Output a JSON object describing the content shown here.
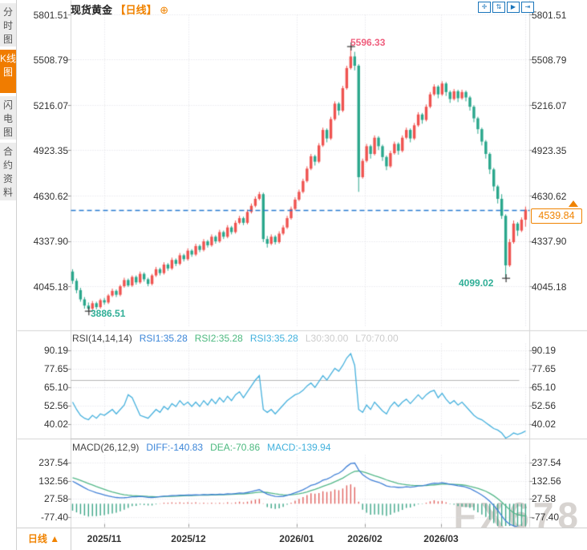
{
  "window": {
    "symbol": "现货黄金",
    "period_tag": "【日线】",
    "settings_glyph": "⊕"
  },
  "toolbar": {
    "icons": [
      {
        "name": "crosshair-icon",
        "glyph": "✛"
      },
      {
        "name": "axis-scale-icon",
        "glyph": "⇅"
      },
      {
        "name": "autoplay-icon",
        "glyph": "▶"
      },
      {
        "name": "go-latest-icon",
        "glyph": "⇥"
      }
    ]
  },
  "sidebar": {
    "items": [
      {
        "label": "分时图",
        "active": false
      },
      {
        "label": "K线图",
        "active": true
      },
      {
        "label": "闪电图",
        "active": false
      },
      {
        "label": "合约资料",
        "active": false
      }
    ]
  },
  "main_chart": {
    "price_axis": [
      "5801.51",
      "5508.79",
      "5216.07",
      "4923.35",
      "4630.62",
      "4337.90",
      "4045.18"
    ],
    "annotation_high": "5596.33",
    "annotation_low": "4099.02",
    "annotation_start_low": "3886.51",
    "current_price": "4539.84"
  },
  "rsi_panel": {
    "header": [
      {
        "text": "RSI(14,14,14)",
        "color": "#444444"
      },
      {
        "text": "RSI1:35.28",
        "color": "#3c86d8"
      },
      {
        "text": "RSI2:35.28",
        "color": "#4cb97f"
      },
      {
        "text": "RSI3:35.28",
        "color": "#41b1dd"
      },
      {
        "text": "L30:30.00",
        "color": "#cccccc"
      },
      {
        "text": "L70:70.00",
        "color": "#cccccc"
      }
    ],
    "axis": [
      "90.19",
      "77.65",
      "65.10",
      "52.56",
      "40.02"
    ]
  },
  "macd_panel": {
    "header": [
      {
        "text": "MACD(26,12,9)",
        "color": "#444444"
      },
      {
        "text": "DIFF:-140.83",
        "color": "#3c86d8"
      },
      {
        "text": "DEA:-70.86",
        "color": "#4cb97f"
      },
      {
        "text": "MACD:-139.94",
        "color": "#41b1dd"
      }
    ],
    "axis": [
      "237.54",
      "132.56",
      "27.58",
      "-77.40"
    ]
  },
  "bottom_bar": {
    "period": "日线",
    "arrow": "▲",
    "x_labels": [
      "2025/11",
      "2025/12",
      "2026/01",
      "2026/02",
      "2026/03"
    ]
  },
  "watermark": "FX678",
  "chart_data": {
    "type": "candlestick+indicators",
    "title": "现货黄金 日线",
    "price_axis_values": [
      5801.51,
      5508.79,
      5216.07,
      4923.35,
      4630.62,
      4337.9,
      4045.18
    ],
    "x_ticks": [
      "2025/11",
      "2025/12",
      "2026/01",
      "2026/02",
      "2026/03"
    ],
    "marked_high": 5596.33,
    "marked_low": 4099.02,
    "left_low": 3886.51,
    "last_price": 4539.84,
    "colors": {
      "up": "#ef5350",
      "down": "#2aa78c",
      "last_price_line": "#2479d0",
      "rsi_line": "#45b0dd",
      "diff_line": "#3f7fd6",
      "dea_line": "#52b788",
      "hist_pos": "#e0615e",
      "hist_neg": "#3aa586",
      "accent": "#f08300"
    },
    "candles": [
      [
        4140,
        4155,
        4060,
        4080
      ],
      [
        4080,
        4095,
        4000,
        4020
      ],
      [
        4020,
        4035,
        3945,
        3960
      ],
      [
        3960,
        3975,
        3900,
        3920
      ],
      [
        3920,
        3940,
        3886.5,
        3900
      ],
      [
        3900,
        3950,
        3890,
        3935
      ],
      [
        3935,
        3945,
        3895,
        3910
      ],
      [
        3910,
        3965,
        3900,
        3955
      ],
      [
        3955,
        3970,
        3925,
        3940
      ],
      [
        3940,
        3995,
        3930,
        3985
      ],
      [
        3985,
        4030,
        3975,
        4015
      ],
      [
        4015,
        4025,
        3975,
        3990
      ],
      [
        3990,
        4055,
        3980,
        4045
      ],
      [
        4045,
        4100,
        4035,
        4085
      ],
      [
        4085,
        4095,
        4040,
        4050
      ],
      [
        4050,
        4115,
        4040,
        4105
      ],
      [
        4105,
        4115,
        4055,
        4070
      ],
      [
        4070,
        4140,
        4060,
        4125
      ],
      [
        4125,
        4135,
        4075,
        4090
      ],
      [
        4090,
        4100,
        4045,
        4060
      ],
      [
        4060,
        4125,
        4050,
        4115
      ],
      [
        4115,
        4170,
        4105,
        4155
      ],
      [
        4155,
        4165,
        4115,
        4130
      ],
      [
        4130,
        4200,
        4120,
        4185
      ],
      [
        4185,
        4195,
        4145,
        4160
      ],
      [
        4160,
        4230,
        4150,
        4215
      ],
      [
        4215,
        4225,
        4175,
        4190
      ],
      [
        4190,
        4260,
        4180,
        4245
      ],
      [
        4245,
        4255,
        4205,
        4220
      ],
      [
        4220,
        4290,
        4210,
        4275
      ],
      [
        4275,
        4285,
        4235,
        4250
      ],
      [
        4250,
        4320,
        4240,
        4305
      ],
      [
        4305,
        4315,
        4265,
        4280
      ],
      [
        4280,
        4350,
        4270,
        4335
      ],
      [
        4335,
        4345,
        4295,
        4310
      ],
      [
        4310,
        4380,
        4300,
        4365
      ],
      [
        4365,
        4375,
        4320,
        4335
      ],
      [
        4335,
        4410,
        4325,
        4395
      ],
      [
        4395,
        4405,
        4350,
        4365
      ],
      [
        4365,
        4440,
        4355,
        4425
      ],
      [
        4425,
        4435,
        4380,
        4395
      ],
      [
        4395,
        4470,
        4385,
        4455
      ],
      [
        4455,
        4500,
        4445,
        4485
      ],
      [
        4485,
        4495,
        4440,
        4455
      ],
      [
        4455,
        4540,
        4445,
        4525
      ],
      [
        4525,
        4580,
        4515,
        4565
      ],
      [
        4565,
        4625,
        4555,
        4610
      ],
      [
        4610,
        4655,
        4600,
        4640
      ],
      [
        4640,
        4650,
        4330,
        4350
      ],
      [
        4350,
        4370,
        4295,
        4320
      ],
      [
        4320,
        4380,
        4310,
        4365
      ],
      [
        4365,
        4375,
        4315,
        4330
      ],
      [
        4330,
        4400,
        4320,
        4385
      ],
      [
        4385,
        4440,
        4375,
        4425
      ],
      [
        4425,
        4500,
        4415,
        4485
      ],
      [
        4485,
        4560,
        4475,
        4545
      ],
      [
        4545,
        4620,
        4535,
        4605
      ],
      [
        4605,
        4670,
        4595,
        4655
      ],
      [
        4655,
        4740,
        4645,
        4725
      ],
      [
        4725,
        4820,
        4715,
        4805
      ],
      [
        4805,
        4900,
        4795,
        4885
      ],
      [
        4885,
        4895,
        4825,
        4850
      ],
      [
        4850,
        4970,
        4840,
        4955
      ],
      [
        4955,
        5070,
        4945,
        5055
      ],
      [
        5055,
        5065,
        4975,
        5000
      ],
      [
        5000,
        5140,
        4990,
        5125
      ],
      [
        5125,
        5240,
        5115,
        5225
      ],
      [
        5225,
        5235,
        5150,
        5180
      ],
      [
        5180,
        5340,
        5170,
        5325
      ],
      [
        5325,
        5470,
        5315,
        5455
      ],
      [
        5455,
        5596.33,
        5445,
        5530
      ],
      [
        5530,
        5560,
        5440,
        5470
      ],
      [
        5470,
        5480,
        4655,
        4750
      ],
      [
        4750,
        4870,
        4740,
        4855
      ],
      [
        4855,
        4965,
        4845,
        4950
      ],
      [
        4950,
        4960,
        4870,
        4900
      ],
      [
        4900,
        5020,
        4890,
        5005
      ],
      [
        5005,
        5015,
        4925,
        4950
      ],
      [
        4950,
        4960,
        4855,
        4880
      ],
      [
        4880,
        4890,
        4795,
        4820
      ],
      [
        4820,
        4920,
        4810,
        4905
      ],
      [
        4905,
        4980,
        4895,
        4965
      ],
      [
        4965,
        4975,
        4895,
        4920
      ],
      [
        4920,
        5020,
        4910,
        5005
      ],
      [
        5005,
        5070,
        4995,
        5055
      ],
      [
        5055,
        5065,
        4975,
        5000
      ],
      [
        5000,
        5100,
        4990,
        5085
      ],
      [
        5085,
        5170,
        5075,
        5155
      ],
      [
        5155,
        5165,
        5095,
        5120
      ],
      [
        5120,
        5220,
        5110,
        5205
      ],
      [
        5205,
        5300,
        5195,
        5285
      ],
      [
        5285,
        5350,
        5275,
        5335
      ],
      [
        5335,
        5345,
        5260,
        5285
      ],
      [
        5285,
        5370,
        5275,
        5355
      ],
      [
        5355,
        5365,
        5275,
        5300
      ],
      [
        5300,
        5310,
        5230,
        5255
      ],
      [
        5255,
        5320,
        5245,
        5305
      ],
      [
        5305,
        5315,
        5235,
        5260
      ],
      [
        5260,
        5315,
        5250,
        5300
      ],
      [
        5300,
        5310,
        5240,
        5265
      ],
      [
        5265,
        5275,
        5180,
        5205
      ],
      [
        5205,
        5215,
        5105,
        5130
      ],
      [
        5130,
        5140,
        5030,
        5060
      ],
      [
        5060,
        5070,
        4955,
        4980
      ],
      [
        4980,
        4990,
        4870,
        4900
      ],
      [
        4900,
        4910,
        4770,
        4800
      ],
      [
        4800,
        4810,
        4660,
        4690
      ],
      [
        4690,
        4700,
        4580,
        4610
      ],
      [
        4610,
        4640,
        4480,
        4500
      ],
      [
        4500,
        4510,
        4099.02,
        4180
      ],
      [
        4180,
        4350,
        4170,
        4330
      ],
      [
        4330,
        4470,
        4320,
        4450
      ],
      [
        4450,
        4460,
        4370,
        4405
      ],
      [
        4405,
        4490,
        4395,
        4475
      ],
      [
        4475,
        4560,
        4430,
        4539.84
      ]
    ],
    "rsi": {
      "params": "(14,14,14)",
      "rsi1_last": 35.28,
      "rsi2_last": 35.28,
      "rsi3_last": 35.28,
      "levels": [
        30,
        70
      ],
      "axis_values": [
        90.19,
        77.65,
        65.1,
        52.56,
        40.02
      ],
      "values": [
        55,
        50,
        46,
        44,
        43,
        46,
        44,
        47,
        46,
        48,
        50,
        47,
        50,
        53,
        60,
        58,
        52,
        46,
        45,
        44,
        47,
        50,
        48,
        52,
        50,
        54,
        52,
        56,
        53,
        55,
        52,
        55,
        52,
        56,
        53,
        57,
        54,
        58,
        55,
        59,
        56,
        60,
        62,
        58,
        62,
        66,
        70,
        73,
        50,
        48,
        50,
        47,
        50,
        53,
        56,
        58,
        60,
        61,
        63,
        66,
        68,
        65,
        69,
        73,
        70,
        74,
        78,
        76,
        80,
        85,
        88,
        80,
        50,
        48,
        53,
        50,
        55,
        52,
        49,
        47,
        52,
        55,
        52,
        55,
        57,
        54,
        57,
        60,
        57,
        60,
        62,
        63,
        58,
        61,
        57,
        54,
        56,
        53,
        55,
        52,
        49,
        46,
        44,
        43,
        41,
        39,
        37,
        36,
        34,
        30.5,
        32,
        34,
        33,
        34,
        35.28
      ]
    },
    "macd": {
      "params": "(26,12,9)",
      "diff_last": -140.83,
      "dea_last": -70.86,
      "macd_last": -139.94,
      "axis_values": [
        237.54,
        132.56,
        27.58,
        -77.4
      ],
      "diff": [
        130,
        118,
        105,
        92,
        80,
        72,
        63,
        57,
        50,
        45,
        40,
        36,
        34,
        35,
        37,
        40,
        40,
        42,
        40,
        37,
        36,
        38,
        41,
        44,
        45,
        47,
        47,
        49,
        49,
        51,
        50,
        52,
        51,
        53,
        52,
        54,
        53,
        55,
        54,
        57,
        56,
        59,
        62,
        61,
        65,
        70,
        76,
        81,
        68,
        55,
        48,
        42,
        41,
        43,
        48,
        55,
        63,
        71,
        81,
        93,
        106,
        112,
        122,
        136,
        142,
        153,
        168,
        176,
        192,
        215,
        232,
        235,
        195,
        168,
        152,
        138,
        131,
        124,
        114,
        103,
        98,
        97,
        94,
        95,
        98,
        96,
        98,
        103,
        104,
        108,
        114,
        119,
        118,
        121,
        118,
        112,
        109,
        104,
        101,
        96,
        88,
        76,
        64,
        50,
        34,
        14,
        -10,
        -38,
        -70,
        -100,
        -118,
        -128,
        -134,
        -138,
        -140.83
      ],
      "dea": [
        150,
        143,
        135,
        126,
        117,
        108,
        99,
        91,
        83,
        75,
        68,
        62,
        56,
        52,
        49,
        47,
        46,
        45,
        44,
        42,
        41,
        40,
        40,
        41,
        42,
        43,
        44,
        45,
        46,
        47,
        47,
        48,
        49,
        50,
        50,
        51,
        51,
        52,
        52,
        53,
        54,
        55,
        56,
        57,
        59,
        61,
        64,
        67,
        67,
        65,
        61,
        57,
        54,
        52,
        51,
        52,
        54,
        57,
        62,
        68,
        76,
        83,
        91,
        100,
        108,
        117,
        127,
        137,
        148,
        162,
        176,
        187,
        189,
        185,
        178,
        170,
        162,
        155,
        147,
        138,
        130,
        123,
        117,
        113,
        110,
        107,
        105,
        105,
        105,
        105,
        107,
        109,
        111,
        113,
        114,
        113,
        112,
        111,
        109,
        106,
        100,
        95,
        89,
        81,
        72,
        60,
        46,
        29,
        9,
        -13,
        -34,
        -53,
        -63,
        -68,
        -70.86
      ]
    }
  }
}
